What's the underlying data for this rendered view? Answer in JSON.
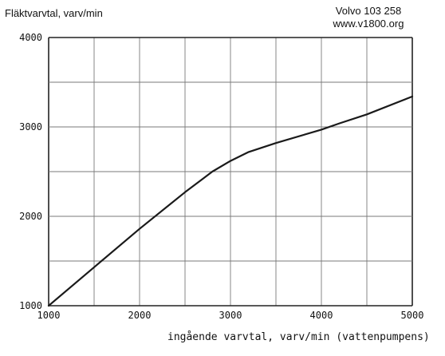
{
  "chart_data": {
    "type": "line",
    "ylabel": "Fläktvarvtal, varv/min",
    "xlabel": "ingående varvtal, varv/min (vattenpumpens)",
    "annotation_lines": [
      "Volvo 103 258",
      "www.v1800.org"
    ],
    "xlim": [
      1000,
      5000
    ],
    "ylim": [
      1000,
      4000
    ],
    "x_grid": [
      1000,
      1500,
      2000,
      2500,
      3000,
      3500,
      4000,
      4500,
      5000
    ],
    "y_grid": [
      1000,
      1500,
      2000,
      2500,
      3000,
      3500,
      4000
    ],
    "x_tick_labels": [
      "1000",
      "2000",
      "3000",
      "4000",
      "5000"
    ],
    "y_tick_labels": [
      "1000",
      "2000",
      "3000",
      "4000"
    ],
    "grid": true,
    "series": [
      {
        "x": [
          1000,
          1500,
          2000,
          2500,
          2800,
          3000,
          3200,
          3500,
          4000,
          4200,
          4500,
          5000
        ],
        "y": [
          1000,
          1430,
          1860,
          2270,
          2500,
          2620,
          2720,
          2820,
          2970,
          3040,
          3140,
          3340
        ]
      }
    ],
    "line_color": "#1a1a1a",
    "grid_color": "#7a7a7a"
  }
}
